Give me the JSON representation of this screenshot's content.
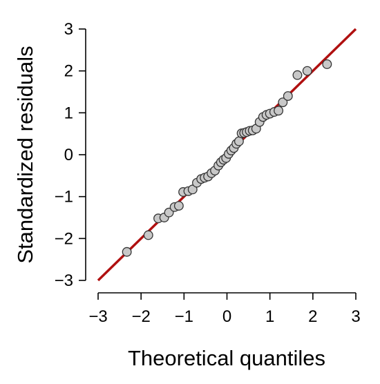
{
  "chart_data": {
    "type": "scatter",
    "title": "",
    "xlabel": "Theoretical quantiles",
    "ylabel": "Standardized residuals",
    "xlim": [
      -3,
      3
    ],
    "ylim": [
      -3,
      3
    ],
    "xticks": [
      "−3",
      "−2",
      "−1",
      "0",
      "1",
      "2",
      "3"
    ],
    "yticks": [
      "−3",
      "−2",
      "−1",
      "0",
      "1",
      "2",
      "3"
    ],
    "xtick_values": [
      -3,
      -2,
      -1,
      0,
      1,
      2,
      3
    ],
    "ytick_values": [
      -3,
      -2,
      -1,
      0,
      1,
      2,
      3
    ],
    "grid": false,
    "reference_line": {
      "from": [
        -3,
        -3
      ],
      "to": [
        3,
        3
      ],
      "color": "#b01010"
    },
    "point_color": "#c8c8c8",
    "points": [
      [
        -2.33,
        -2.32
      ],
      [
        -1.83,
        -1.92
      ],
      [
        -1.6,
        -1.52
      ],
      [
        -1.46,
        -1.5
      ],
      [
        -1.35,
        -1.38
      ],
      [
        -1.22,
        -1.25
      ],
      [
        -1.12,
        -1.22
      ],
      [
        -1.02,
        -0.89
      ],
      [
        -0.9,
        -0.87
      ],
      [
        -0.8,
        -0.83
      ],
      [
        -0.7,
        -0.67
      ],
      [
        -0.6,
        -0.58
      ],
      [
        -0.52,
        -0.55
      ],
      [
        -0.44,
        -0.52
      ],
      [
        -0.36,
        -0.44
      ],
      [
        -0.28,
        -0.38
      ],
      [
        -0.2,
        -0.26
      ],
      [
        -0.14,
        -0.18
      ],
      [
        -0.08,
        -0.12
      ],
      [
        -0.02,
        -0.08
      ],
      [
        0.04,
        0.02
      ],
      [
        0.1,
        0.1
      ],
      [
        0.16,
        0.16
      ],
      [
        0.22,
        0.26
      ],
      [
        0.28,
        0.32
      ],
      [
        0.34,
        0.51
      ],
      [
        0.4,
        0.52
      ],
      [
        0.46,
        0.54
      ],
      [
        0.53,
        0.57
      ],
      [
        0.6,
        0.58
      ],
      [
        0.68,
        0.62
      ],
      [
        0.76,
        0.78
      ],
      [
        0.84,
        0.9
      ],
      [
        0.92,
        0.95
      ],
      [
        1.0,
        0.98
      ],
      [
        1.1,
        1.02
      ],
      [
        1.2,
        1.05
      ],
      [
        1.3,
        1.25
      ],
      [
        1.42,
        1.4
      ],
      [
        1.64,
        1.9
      ],
      [
        1.87,
        2.0
      ],
      [
        2.33,
        2.16
      ]
    ]
  }
}
